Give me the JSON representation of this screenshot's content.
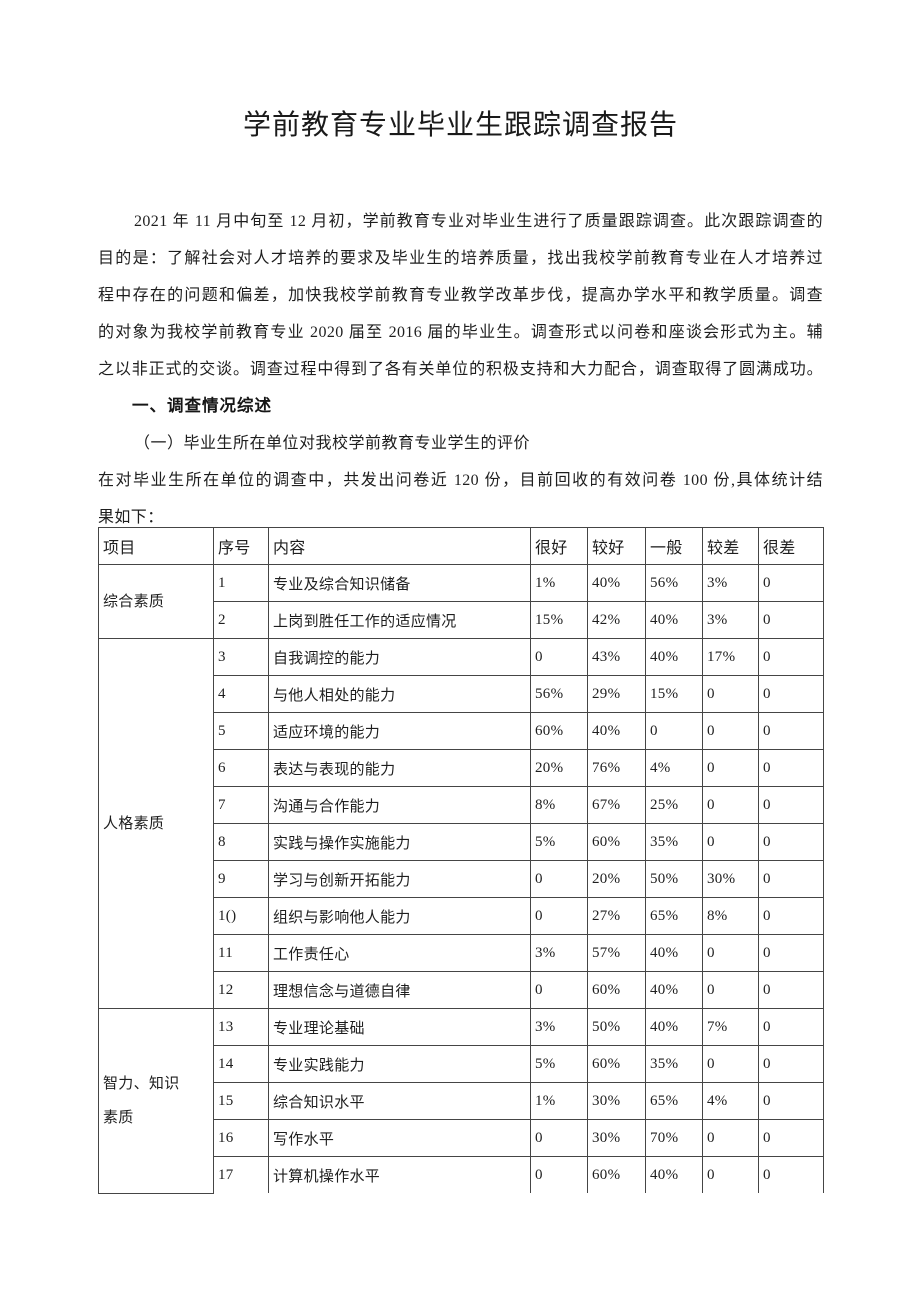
{
  "title": "学前教育专业毕业生跟踪调查报告",
  "intro": {
    "lines": [
      "2021 年 11 月中旬至 12 月初，学前教育专业对毕业生进行了质量跟踪调查。此次跟踪调查的",
      "目的是：了解社会对人才培养的要求及毕业生的培养质量，找出我校学前教育专业在人才培养过",
      "程中存在的问题和偏差，加快我校学前教育专业教学改革步伐，提高办学水平和教学质量。调查",
      "的对象为我校学前教育专业 2020 届至 2016 届的毕业生。调查形式以问卷和座谈会形式为主。辅",
      "之以非正式的交谈。调查过程中得到了各有关单位的积极支持和大力配合，调查取得了圆满成功。"
    ]
  },
  "section_heading": "一、调查情况综述",
  "subsection_heading": "（一）毕业生所在单位对我校学前教育专业学生的评价",
  "stats_intro": {
    "lines": [
      "在对毕业生所在单位的调查中，共发出问卷近 120 份，目前回收的有效问卷 100 份,具体统计结",
      "果如下："
    ]
  },
  "table": {
    "columns": [
      "项目",
      "序号",
      "内容",
      "很好",
      "较好",
      "一般",
      "较差",
      "很差"
    ],
    "groups": [
      {
        "label": "综合素质",
        "span": 2
      },
      {
        "label": "人格素质",
        "span": 10
      },
      {
        "label": "智力、知识\n素质",
        "span": 5
      }
    ],
    "rows": [
      [
        "1",
        "专业及综合知识储备",
        "1%",
        "40%",
        "56%",
        "3%",
        "0"
      ],
      [
        "2",
        "上岗到胜任工作的适应情况",
        "15%",
        "42%",
        "40%",
        "3%",
        "0"
      ],
      [
        "3",
        "自我调控的能力",
        "0",
        "43%",
        "40%",
        "17%",
        "0"
      ],
      [
        "4",
        "与他人相处的能力",
        "56%",
        "29%",
        "15%",
        "0",
        "0"
      ],
      [
        "5",
        "适应环境的能力",
        "60%",
        "40%",
        "0",
        "0",
        "0"
      ],
      [
        "6",
        "表达与表现的能力",
        "20%",
        "76%",
        "4%",
        "0",
        "0"
      ],
      [
        "7",
        "沟通与合作能力",
        "8%",
        "67%",
        "25%",
        "0",
        "0"
      ],
      [
        "8",
        "实践与操作实施能力",
        "5%",
        "60%",
        "35%",
        "0",
        "0"
      ],
      [
        "9",
        "学习与创新开拓能力",
        "0",
        "20%",
        "50%",
        "30%",
        "0"
      ],
      [
        "1()",
        "组织与影响他人能力",
        "0",
        "27%",
        "65%",
        "8%",
        "0"
      ],
      [
        "11",
        "工作责任心",
        "3%",
        "57%",
        "40%",
        "0",
        "0"
      ],
      [
        "12",
        "理想信念与道德自律",
        "0",
        "60%",
        "40%",
        "0",
        "0"
      ],
      [
        "13",
        "专业理论基础",
        "3%",
        "50%",
        "40%",
        "7%",
        "0"
      ],
      [
        "14",
        "专业实践能力",
        "5%",
        "60%",
        "35%",
        "0",
        "0"
      ],
      [
        "15",
        "综合知识水平",
        "1%",
        "30%",
        "65%",
        "4%",
        "0"
      ],
      [
        "16",
        "写作水平",
        "0",
        "30%",
        "70%",
        "0",
        "0"
      ],
      [
        "17",
        "计算机操作水平",
        "0",
        "60%",
        "40%",
        "0",
        "0"
      ]
    ]
  }
}
